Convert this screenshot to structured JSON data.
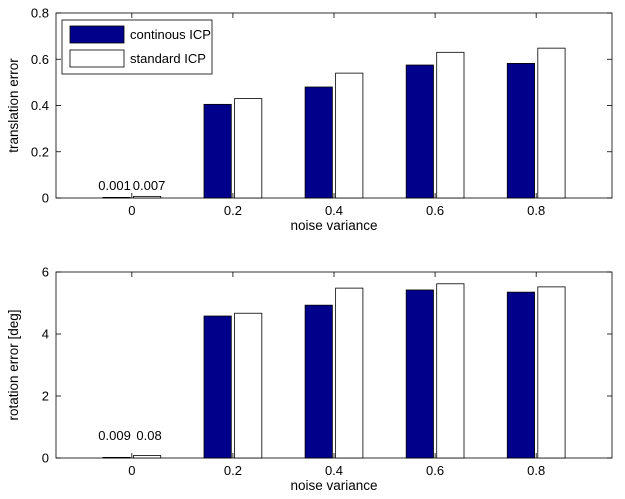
{
  "chart_data": [
    {
      "type": "bar",
      "categories": [
        "0",
        "0.2",
        "0.4",
        "0.6",
        "0.8"
      ],
      "series": [
        {
          "name": "continous ICP",
          "values": [
            0.001,
            0.405,
            0.48,
            0.575,
            0.582
          ]
        },
        {
          "name": "standard ICP",
          "values": [
            0.007,
            0.43,
            0.54,
            0.63,
            0.648
          ]
        }
      ],
      "data_labels": {
        "0": [
          "0.001",
          "0.007"
        ]
      },
      "xlabel": "noise variance",
      "ylabel": "translation error",
      "ylim": [
        0,
        0.8
      ],
      "yticks": [
        "0",
        "0.2",
        "0.4",
        "0.6",
        "0.8"
      ],
      "legend": "top-left",
      "grid": false
    },
    {
      "type": "bar",
      "categories": [
        "0",
        "0.2",
        "0.4",
        "0.6",
        "0.8"
      ],
      "series": [
        {
          "values": [
            0.009,
            4.58,
            4.93,
            5.42,
            5.35
          ]
        },
        {
          "values": [
            0.08,
            4.67,
            5.48,
            5.62,
            5.52
          ]
        }
      ],
      "data_labels": {
        "0": [
          "0.009",
          "0.08"
        ]
      },
      "xlabel": "noise variance",
      "ylabel": "rotation error [deg]",
      "ylim": [
        0,
        6
      ],
      "yticks": [
        "0",
        "2",
        "4",
        "6"
      ],
      "grid": false
    }
  ],
  "colors": {
    "series1_fill": "#00008B",
    "series2_fill": "#FFFFFF",
    "edge": "#000000"
  }
}
